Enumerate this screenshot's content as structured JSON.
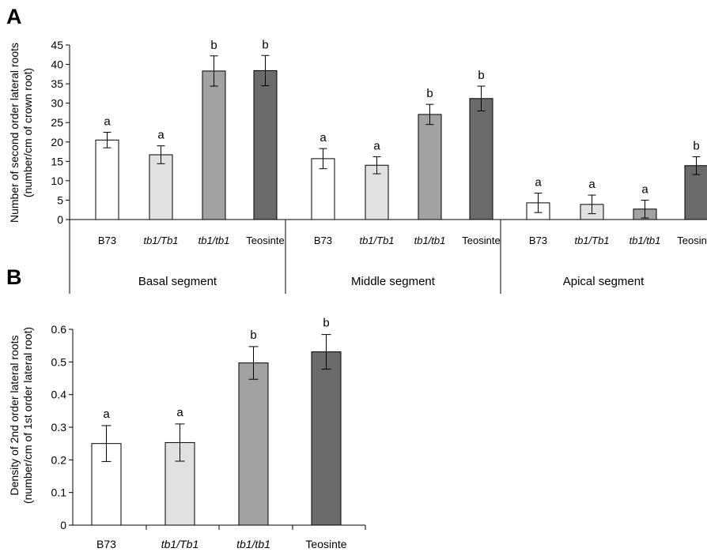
{
  "chart_data": [
    {
      "panel_label": "A",
      "type": "bar",
      "ylabel_lines": [
        "Number of second order lateral roots",
        "(number/cm of crown root)"
      ],
      "ylim": [
        0,
        45
      ],
      "yticks": [
        0,
        5,
        10,
        15,
        20,
        25,
        30,
        35,
        40,
        45
      ],
      "grid": false,
      "groups": [
        {
          "label": "Basal segment",
          "bars": [
            {
              "category": "B73",
              "italic": false,
              "value": 20.5,
              "error": 2.0,
              "letter": "a",
              "color": "#ffffff"
            },
            {
              "category": "tb1/Tb1",
              "italic": true,
              "value": 16.7,
              "error": 2.3,
              "letter": "a",
              "color": "#e1e1e1"
            },
            {
              "category": "tb1/tb1",
              "italic": true,
              "value": 38.3,
              "error": 3.9,
              "letter": "b",
              "color": "#a2a2a4"
            },
            {
              "category": "Teosinte",
              "italic": false,
              "value": 38.4,
              "error": 3.9,
              "letter": "b",
              "color": "#6a6a6c"
            }
          ]
        },
        {
          "label": "Middle segment",
          "bars": [
            {
              "category": "B73",
              "italic": false,
              "value": 15.7,
              "error": 2.6,
              "letter": "a",
              "color": "#ffffff"
            },
            {
              "category": "tb1/Tb1",
              "italic": true,
              "value": 14.0,
              "error": 2.2,
              "letter": "a",
              "color": "#e1e1e1"
            },
            {
              "category": "tb1/tb1",
              "italic": true,
              "value": 27.1,
              "error": 2.6,
              "letter": "b",
              "color": "#a2a2a4"
            },
            {
              "category": "Teosinte",
              "italic": false,
              "value": 31.2,
              "error": 3.2,
              "letter": "b",
              "color": "#6a6a6c"
            }
          ]
        },
        {
          "label": "Apical segment",
          "bars": [
            {
              "category": "B73",
              "italic": false,
              "value": 4.3,
              "error": 2.5,
              "letter": "a",
              "color": "#ffffff"
            },
            {
              "category": "tb1/Tb1",
              "italic": true,
              "value": 3.9,
              "error": 2.4,
              "letter": "a",
              "color": "#e1e1e1"
            },
            {
              "category": "tb1/tb1",
              "italic": true,
              "value": 2.7,
              "error": 2.3,
              "letter": "a",
              "color": "#a2a2a4"
            },
            {
              "category": "Teosinte",
              "italic": false,
              "value": 13.9,
              "error": 2.3,
              "letter": "b",
              "color": "#6a6a6c"
            }
          ]
        }
      ]
    },
    {
      "panel_label": "B",
      "type": "bar",
      "ylabel_lines": [
        "Density of 2nd order lateral roots",
        "(number/cm of 1st order lateral root)"
      ],
      "ylim": [
        0,
        0.6
      ],
      "yticks": [
        "0",
        "0.1",
        "0.2",
        "0.3",
        "0.4",
        "0.5",
        "0.6"
      ],
      "grid": false,
      "bars": [
        {
          "category": "B73",
          "italic": false,
          "value": 0.25,
          "error": 0.055,
          "letter": "a",
          "color": "#ffffff"
        },
        {
          "category": "tb1/Tb1",
          "italic": true,
          "value": 0.253,
          "error": 0.057,
          "letter": "a",
          "color": "#e1e1e1"
        },
        {
          "category": "tb1/tb1",
          "italic": true,
          "value": 0.497,
          "error": 0.05,
          "letter": "b",
          "color": "#a2a2a4"
        },
        {
          "category": "Teosinte",
          "italic": false,
          "value": 0.531,
          "error": 0.053,
          "letter": "b",
          "color": "#6a6a6c"
        }
      ]
    }
  ]
}
